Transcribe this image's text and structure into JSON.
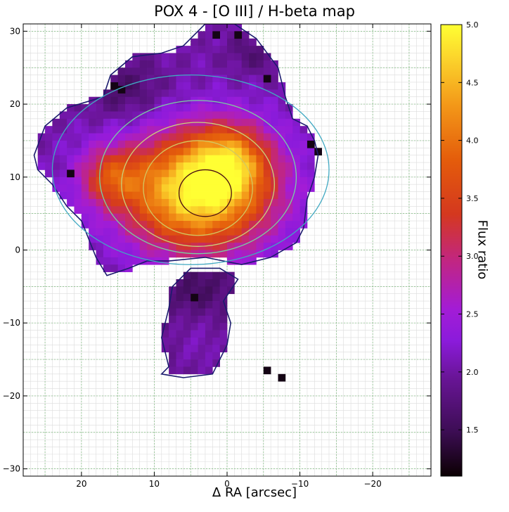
{
  "chart_data": {
    "type": "heatmap",
    "title": "POX 4 - [O III] / H-beta map",
    "xlabel": "Δ RA [arcsec]",
    "ylabel": "",
    "colorbar_label": "Flux ratio",
    "xlim": [
      28,
      -28
    ],
    "ylim": [
      -31,
      31
    ],
    "x_ticks": [
      20,
      10,
      0,
      -10,
      -20
    ],
    "x_tick_labels": [
      "20",
      "10",
      "0",
      "−10",
      "−20"
    ],
    "y_ticks": [
      30,
      20,
      10,
      0,
      -10,
      -20,
      -30
    ],
    "y_tick_labels": [
      "30",
      "20",
      "10",
      "0",
      "−10",
      "−20",
      "−30"
    ],
    "colorbar_range": [
      1.1,
      5.0
    ],
    "colorbar_ticks": [
      5.0,
      4.5,
      4.0,
      3.5,
      3.0,
      2.5,
      2.0,
      1.5
    ],
    "colorbar_tick_labels": [
      "5.0",
      "4.5",
      "4.0",
      "3.5",
      "3.0",
      "2.5",
      "2.0",
      "1.5"
    ],
    "colormap": "gnuplot (black - purple - red - orange - yellow)",
    "grid": true,
    "regions": [
      {
        "name": "main",
        "boundary": [
          [
            26.5,
            13
          ],
          [
            25,
            17
          ],
          [
            22,
            19.5
          ],
          [
            17,
            21
          ],
          [
            16,
            24
          ],
          [
            13,
            26.5
          ],
          [
            9,
            27
          ],
          [
            6,
            28
          ],
          [
            3,
            31
          ],
          [
            -1,
            31
          ],
          [
            -4,
            29
          ],
          [
            -7,
            25
          ],
          [
            -8,
            21
          ],
          [
            -9,
            18
          ],
          [
            -11,
            17
          ],
          [
            -12,
            15
          ],
          [
            -12.5,
            13
          ],
          [
            -12,
            10
          ],
          [
            -11,
            7
          ],
          [
            -10.5,
            3
          ],
          [
            -9.5,
            1
          ],
          [
            -6,
            -1
          ],
          [
            -2,
            -2
          ],
          [
            3,
            -1
          ],
          [
            8,
            -1.5
          ],
          [
            11,
            -1.5
          ],
          [
            13.5,
            -2.5
          ],
          [
            16.5,
            -3.5
          ],
          [
            18,
            -1
          ],
          [
            20,
            4
          ],
          [
            22,
            6
          ],
          [
            24,
            9
          ],
          [
            26,
            11
          ]
        ]
      },
      {
        "name": "south",
        "boundary": [
          [
            -1.5,
            -4
          ],
          [
            1,
            -2.5
          ],
          [
            5,
            -2.5
          ],
          [
            7.5,
            -5
          ],
          [
            8,
            -8
          ],
          [
            9,
            -12
          ],
          [
            8,
            -16
          ],
          [
            9,
            -17
          ],
          [
            6,
            -17.5
          ],
          [
            2,
            -17
          ],
          [
            1,
            -15
          ],
          [
            0,
            -13
          ],
          [
            -0.5,
            -10
          ],
          [
            0.5,
            -7
          ]
        ]
      }
    ],
    "peak": {
      "x": 4,
      "y": 8,
      "value": 5.0
    },
    "secondary_peaks": [
      {
        "x": 16,
        "y": 10,
        "value": 3.2
      },
      {
        "x": -0.5,
        "y": 12.5,
        "value": 3.4
      }
    ],
    "contours": [
      {
        "level": 4.8,
        "color": "#4b0f12",
        "x": 3,
        "y": 7.8,
        "rx": 3.6,
        "ry": 3.2
      },
      {
        "level": 4.3,
        "color": "#d2c861",
        "x": 4,
        "y": 8.5,
        "rx": 7.5,
        "ry": 6.5
      },
      {
        "level": 3.8,
        "color": "#c9d27a",
        "x": 4,
        "y": 9.0,
        "rx": 10.5,
        "ry": 8.5
      },
      {
        "level": 3.4,
        "color": "#7ad1a1",
        "x": 4,
        "y": 10.0,
        "rx": 13.5,
        "ry": 10.5
      },
      {
        "level": 2.6,
        "color": "#41a9c2",
        "x": 5,
        "y": 11.0,
        "rx": 19.0,
        "ry": 13.0
      }
    ]
  }
}
